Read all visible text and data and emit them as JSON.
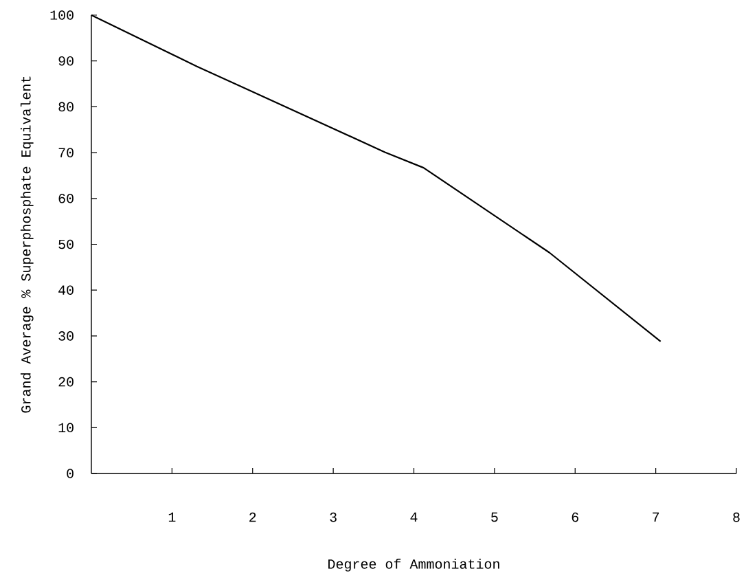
{
  "chart_data": {
    "type": "line",
    "xlabel": "Degree of Ammoniation",
    "ylabel": "Grand Average % Superphosphate Equivalent",
    "x": [
      0,
      1.31,
      1.91,
      3.64,
      4.12,
      5.68,
      7.06
    ],
    "values": [
      100,
      88.8,
      84.0,
      70.1,
      66.7,
      48.2,
      28.8
    ],
    "color": "#000000",
    "marker": "none",
    "line_style": "solid",
    "xlim": [
      0,
      8
    ],
    "ylim": [
      0,
      100
    ],
    "xticks": [
      1,
      2,
      3,
      4,
      5,
      6,
      7,
      8
    ],
    "yticks": [
      0,
      10,
      20,
      30,
      40,
      50,
      60,
      70,
      80,
      90,
      100
    ]
  }
}
